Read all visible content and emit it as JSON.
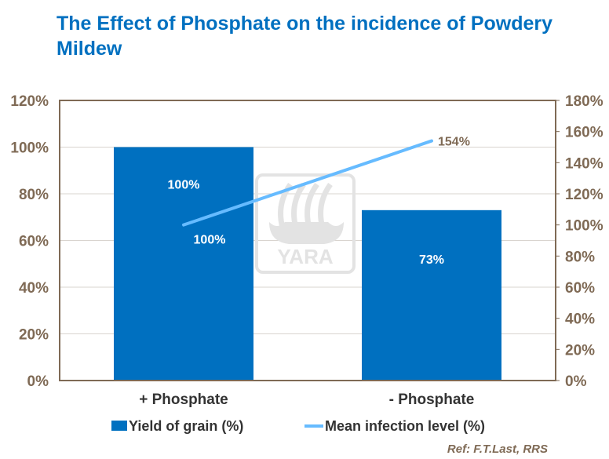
{
  "chart_data": {
    "type": "bar+line",
    "title": "The Effect of Phosphate on the incidence of Powdery Mildew",
    "categories": [
      "+  Phosphate",
      "- Phosphate"
    ],
    "series": [
      {
        "name": "Yield of grain (%)",
        "type": "bar",
        "axis": "left",
        "values": [
          100,
          73
        ],
        "labels": [
          "100%",
          "73%"
        ],
        "color": "#0070c0"
      },
      {
        "name": "Mean infection level (%)",
        "type": "line",
        "axis": "right",
        "values": [
          100,
          154
        ],
        "labels": [
          "100%",
          "154%"
        ],
        "color": "#66bbff"
      }
    ],
    "y_left": {
      "range": [
        0,
        120
      ],
      "ticks": [
        "0%",
        "20%",
        "40%",
        "60%",
        "80%",
        "100%",
        "120%"
      ]
    },
    "y_right": {
      "range": [
        0,
        180
      ],
      "ticks": [
        "0%",
        "20%",
        "40%",
        "60%",
        "80%",
        "100%",
        "120%",
        "140%",
        "160%",
        "180%"
      ]
    },
    "grid": true,
    "legend": "bottom",
    "axis_color": "#7f6a55",
    "watermark": "YARA"
  },
  "footer": {
    "reference": "Ref: F.T.Last, RRS"
  }
}
